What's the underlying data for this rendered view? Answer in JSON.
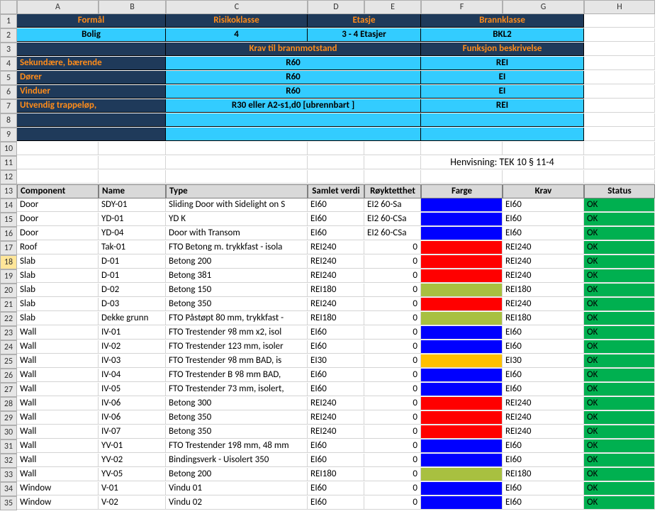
{
  "columns": [
    "A",
    "B",
    "C",
    "D",
    "E",
    "F",
    "G",
    "H"
  ],
  "header": {
    "row1": {
      "formals": "Formål",
      "risiko": "Risikoklasse",
      "etasje": "Etasje",
      "brann": "Brannklasse"
    },
    "row2": {
      "formals": "Bolig",
      "risiko": "4",
      "etasje": "3 - 4 Etasjer",
      "brann": "BKL2"
    },
    "row3": {
      "krav": "Krav til brannmotstand",
      "funksjon": "Funksjon beskrivelse"
    },
    "rows": [
      {
        "label": "Sekundære, bærende",
        "krav": "R60",
        "funksjon": "REI"
      },
      {
        "label": "Dører",
        "krav": "R60",
        "funksjon": "EI"
      },
      {
        "label": "Vinduer",
        "krav": "R60",
        "funksjon": "EI"
      },
      {
        "label": "Utvendig trappeløp,",
        "krav": "R30 eller A2-s1,d0 [ubrennbart ]",
        "funksjon": "REI"
      },
      {
        "label": "",
        "krav": "",
        "funksjon": ""
      },
      {
        "label": "",
        "krav": "",
        "funksjon": ""
      }
    ]
  },
  "henvisning": "Henvisning: TEK 10 § 11-4",
  "tableHeaders": [
    "Component",
    "Name",
    "Type",
    "Samlet verdi",
    "Røyktetthet",
    "Farge",
    "Krav",
    "Status"
  ],
  "tableRows": [
    {
      "component": "Door",
      "name": "SDY-01",
      "type": "Sliding Door with Sidelight on S",
      "samlet": "EI60",
      "royk": "EI2 60-Sa",
      "farge": "blue",
      "krav": "EI60",
      "status": "OK"
    },
    {
      "component": "Door",
      "name": "YD-01",
      "type": "YD K",
      "samlet": "EI60",
      "royk": "EI2 60-CSa",
      "farge": "blue",
      "krav": "EI60",
      "status": "OK"
    },
    {
      "component": "Door",
      "name": "YD-04",
      "type": "Door with Transom",
      "samlet": "EI60",
      "royk": "EI2 60-CSa",
      "farge": "blue",
      "krav": "EI60",
      "status": "OK"
    },
    {
      "component": "Roof",
      "name": "Tak-01",
      "type": "FTO Betong m. trykkfast - isola",
      "samlet": "REI240",
      "royk": "0",
      "farge": "red",
      "krav": "REI240",
      "status": "OK"
    },
    {
      "component": "Slab",
      "name": "D-01",
      "type": "Betong 200",
      "samlet": "REI240",
      "royk": "0",
      "farge": "red",
      "krav": "REI240",
      "status": "OK"
    },
    {
      "component": "Slab",
      "name": "D-01",
      "type": "Betong 381",
      "samlet": "REI240",
      "royk": "0",
      "farge": "red",
      "krav": "REI240",
      "status": "OK"
    },
    {
      "component": "Slab",
      "name": "D-02",
      "type": "Betong 150",
      "samlet": "REI180",
      "royk": "0",
      "farge": "olive",
      "krav": "REI180",
      "status": "OK"
    },
    {
      "component": "Slab",
      "name": "D-03",
      "type": "Betong 350",
      "samlet": "REI240",
      "royk": "0",
      "farge": "red",
      "krav": "REI240",
      "status": "OK"
    },
    {
      "component": "Slab",
      "name": "Dekke grunn",
      "type": "FTO Påstøpt 80 mm, trykkfast -",
      "samlet": "REI180",
      "royk": "0",
      "farge": "olive",
      "krav": "REI180",
      "status": "OK"
    },
    {
      "component": "Wall",
      "name": "IV-01",
      "type": "FTO Trestender 98 mm x2, isol",
      "samlet": "EI60",
      "royk": "0",
      "farge": "blue",
      "krav": "EI60",
      "status": "OK"
    },
    {
      "component": "Wall",
      "name": "IV-02",
      "type": "FTO Trestender 123 mm, isoler",
      "samlet": "EI60",
      "royk": "0",
      "farge": "blue",
      "krav": "EI60",
      "status": "OK"
    },
    {
      "component": "Wall",
      "name": "IV-03",
      "type": "FTO Trestender 98 mm BAD, is",
      "samlet": "EI30",
      "royk": "0",
      "farge": "yellow",
      "krav": "EI30",
      "status": "OK"
    },
    {
      "component": "Wall",
      "name": "IV-04",
      "type": "FTO Trestender B 98 mm BAD,",
      "samlet": "EI60",
      "royk": "0",
      "farge": "blue",
      "krav": "EI60",
      "status": "OK"
    },
    {
      "component": "Wall",
      "name": "IV-05",
      "type": "FTO Trestender 73 mm, isolert,",
      "samlet": "EI60",
      "royk": "0",
      "farge": "blue",
      "krav": "EI60",
      "status": "OK"
    },
    {
      "component": "Wall",
      "name": "IV-06",
      "type": "Betong 300",
      "samlet": "REI240",
      "royk": "0",
      "farge": "red",
      "krav": "REI240",
      "status": "OK"
    },
    {
      "component": "Wall",
      "name": "IV-06",
      "type": "Betong 350",
      "samlet": "REI240",
      "royk": "0",
      "farge": "red",
      "krav": "REI240",
      "status": "OK"
    },
    {
      "component": "Wall",
      "name": "IV-07",
      "type": "Betong 350",
      "samlet": "REI240",
      "royk": "0",
      "farge": "red",
      "krav": "REI240",
      "status": "OK"
    },
    {
      "component": "Wall",
      "name": "YV-01",
      "type": "FTO Trestender 198 mm, 48 mm",
      "samlet": "EI60",
      "royk": "0",
      "farge": "blue",
      "krav": "EI60",
      "status": "OK"
    },
    {
      "component": "Wall",
      "name": "YV-02",
      "type": "Bindingsverk - Uisolert 350",
      "samlet": "EI60",
      "royk": "0",
      "farge": "blue",
      "krav": "EI60",
      "status": "OK"
    },
    {
      "component": "Wall",
      "name": "YV-05",
      "type": "Betong 200",
      "samlet": "REI180",
      "royk": "0",
      "farge": "olive",
      "krav": "REI180",
      "status": "OK"
    },
    {
      "component": "Window",
      "name": "V-01",
      "type": "Vindu 01",
      "samlet": "EI60",
      "royk": "0",
      "farge": "blue",
      "krav": "EI60",
      "status": "OK"
    },
    {
      "component": "Window",
      "name": "V-02",
      "type": "Vindu 02",
      "samlet": "EI60",
      "royk": "0",
      "farge": "blue",
      "krav": "EI60",
      "status": "OK"
    }
  ],
  "colors": {
    "blue": "#0000ff",
    "red": "#ff0000",
    "olive": "#a8c040",
    "yellow": "#ffc000",
    "statusOK": "#00b050",
    "darkNavy": "#1f3a5a",
    "cyan": "#33ccff",
    "orange": "#ff8c1a"
  }
}
